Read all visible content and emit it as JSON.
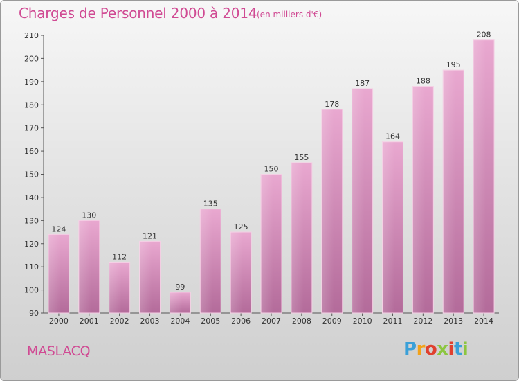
{
  "header": {
    "title": "Charges de Personnel 2000 à 2014",
    "subtitle": "(en milliers d'€)"
  },
  "footer": {
    "commune": "MASLACQ",
    "logo_letters": [
      "P",
      "r",
      "o",
      "x",
      "i",
      "t",
      "i"
    ],
    "logo_colors": [
      "#3aa0d8",
      "#f2a21a",
      "#e0402e",
      "#8cc63f",
      "#e0402e",
      "#3aa0d8",
      "#8cc63f"
    ]
  },
  "colors": {
    "bar_top": "#e9a8d0",
    "bar_bottom": "#b36b9a",
    "title": "#d04a93"
  },
  "chart_data": {
    "type": "bar",
    "title": "Charges de Personnel 2000 à 2014",
    "subtitle": "(en milliers d'€)",
    "categories": [
      "2000",
      "2001",
      "2002",
      "2003",
      "2004",
      "2005",
      "2006",
      "2007",
      "2008",
      "2009",
      "2010",
      "2011",
      "2012",
      "2013",
      "2014"
    ],
    "values": [
      124,
      130,
      112,
      121,
      99,
      135,
      125,
      150,
      155,
      178,
      187,
      164,
      188,
      195,
      208
    ],
    "ylim": [
      90,
      210
    ],
    "yticks": [
      90,
      100,
      110,
      120,
      130,
      140,
      150,
      160,
      170,
      180,
      190,
      200,
      210
    ],
    "grid": false,
    "legend": "none"
  }
}
